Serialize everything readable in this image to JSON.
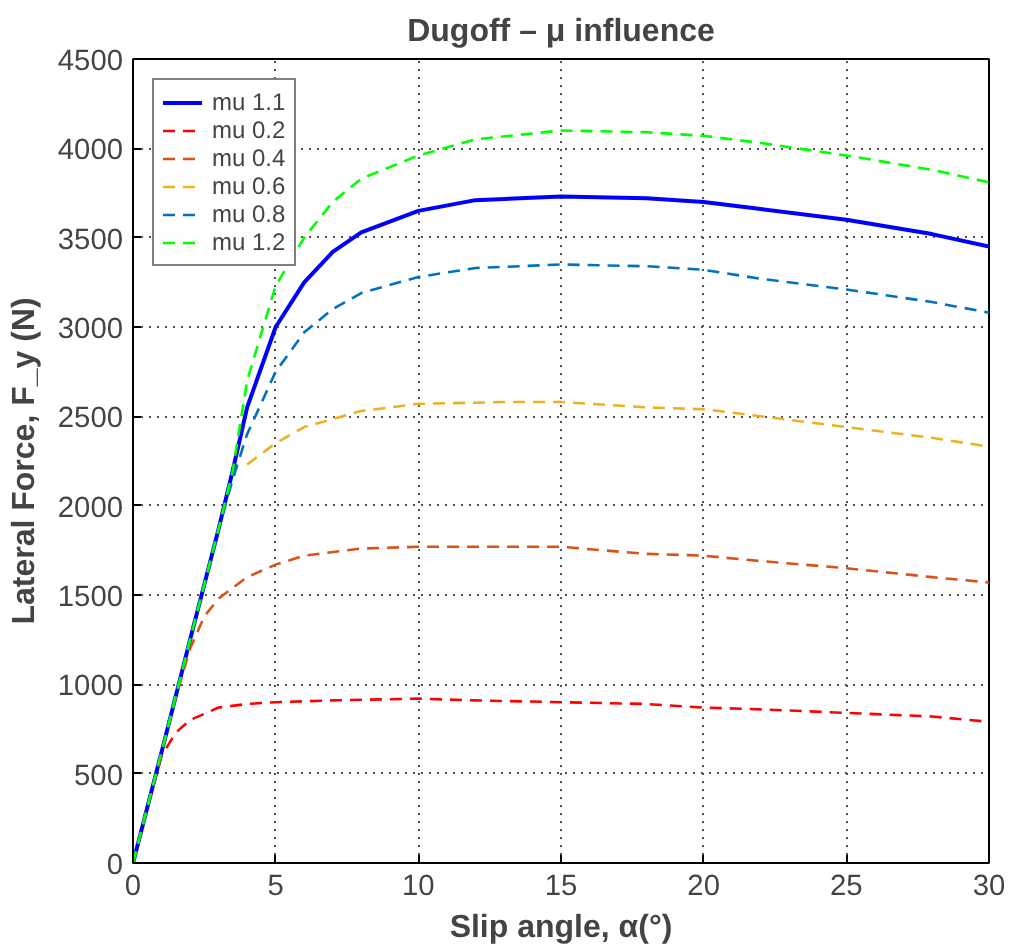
{
  "chart_data": {
    "type": "line",
    "title": "Dugoff – μ influence",
    "xlabel": "Slip angle, α(°)",
    "ylabel": "Lateral Force, F_y (N)",
    "xlim": [
      0,
      30
    ],
    "ylim": [
      0,
      4500
    ],
    "xticks": [
      0,
      5,
      10,
      15,
      20,
      25,
      30
    ],
    "yticks": [
      0,
      500,
      1000,
      1500,
      2000,
      2500,
      3000,
      3500,
      4000,
      4500
    ],
    "grid": true,
    "legend": "top left",
    "series": [
      {
        "name": "mu 1.1",
        "color": "#0000ff",
        "line_style": "solid",
        "x": [
          0,
          1,
          2,
          3,
          3.5,
          4,
          5,
          6,
          7,
          8,
          10,
          12,
          15,
          18,
          20,
          22,
          25,
          28,
          30
        ],
        "values": [
          0,
          620,
          1250,
          1870,
          2200,
          2550,
          3000,
          3250,
          3420,
          3530,
          3650,
          3710,
          3730,
          3720,
          3700,
          3660,
          3600,
          3520,
          3450
        ]
      },
      {
        "name": "mu 0.2",
        "color": "#ff0000",
        "line_style": "dashed",
        "x": [
          0,
          0.5,
          1,
          1.5,
          2,
          3,
          4,
          5,
          7,
          10,
          12,
          15,
          18,
          20,
          22,
          25,
          28,
          30
        ],
        "values": [
          0,
          310,
          600,
          730,
          800,
          870,
          890,
          900,
          910,
          920,
          910,
          900,
          890,
          870,
          860,
          840,
          820,
          790
        ]
      },
      {
        "name": "mu 0.4",
        "color": "#d95319",
        "line_style": "dashed",
        "x": [
          0,
          0.5,
          1,
          1.5,
          2,
          2.5,
          3,
          4,
          5,
          6,
          8,
          10,
          15,
          18,
          20,
          22,
          25,
          28,
          30
        ],
        "values": [
          0,
          310,
          620,
          930,
          1200,
          1380,
          1480,
          1600,
          1670,
          1720,
          1760,
          1770,
          1770,
          1730,
          1720,
          1690,
          1650,
          1600,
          1570
        ]
      },
      {
        "name": "mu 0.6",
        "color": "#edb120",
        "line_style": "dashed",
        "x": [
          4,
          5,
          6,
          8,
          10,
          13,
          15,
          18,
          20,
          22,
          25,
          28,
          30
        ],
        "values": [
          2230,
          2350,
          2440,
          2530,
          2570,
          2580,
          2580,
          2550,
          2540,
          2500,
          2440,
          2380,
          2330
        ]
      },
      {
        "name": "mu 0.8",
        "color": "#0072bd",
        "line_style": "dashed",
        "x": [
          0,
          1,
          2,
          3,
          3.5,
          4,
          5,
          6,
          7,
          8,
          10,
          12,
          15,
          18,
          20,
          22,
          25,
          28,
          30
        ],
        "values": [
          0,
          620,
          1250,
          1870,
          2150,
          2400,
          2750,
          2970,
          3100,
          3190,
          3280,
          3330,
          3350,
          3340,
          3320,
          3270,
          3210,
          3140,
          3080
        ]
      },
      {
        "name": "mu 1.2",
        "color": "#00ff00",
        "line_style": "dashed",
        "x": [
          0,
          1,
          2,
          3,
          3.5,
          4,
          5,
          6,
          7,
          8,
          10,
          12,
          15,
          18,
          20,
          22,
          25,
          28,
          30
        ],
        "values": [
          0,
          620,
          1250,
          1870,
          2200,
          2700,
          3230,
          3500,
          3700,
          3830,
          3960,
          4050,
          4100,
          4090,
          4070,
          4030,
          3960,
          3880,
          3810
        ]
      }
    ]
  }
}
